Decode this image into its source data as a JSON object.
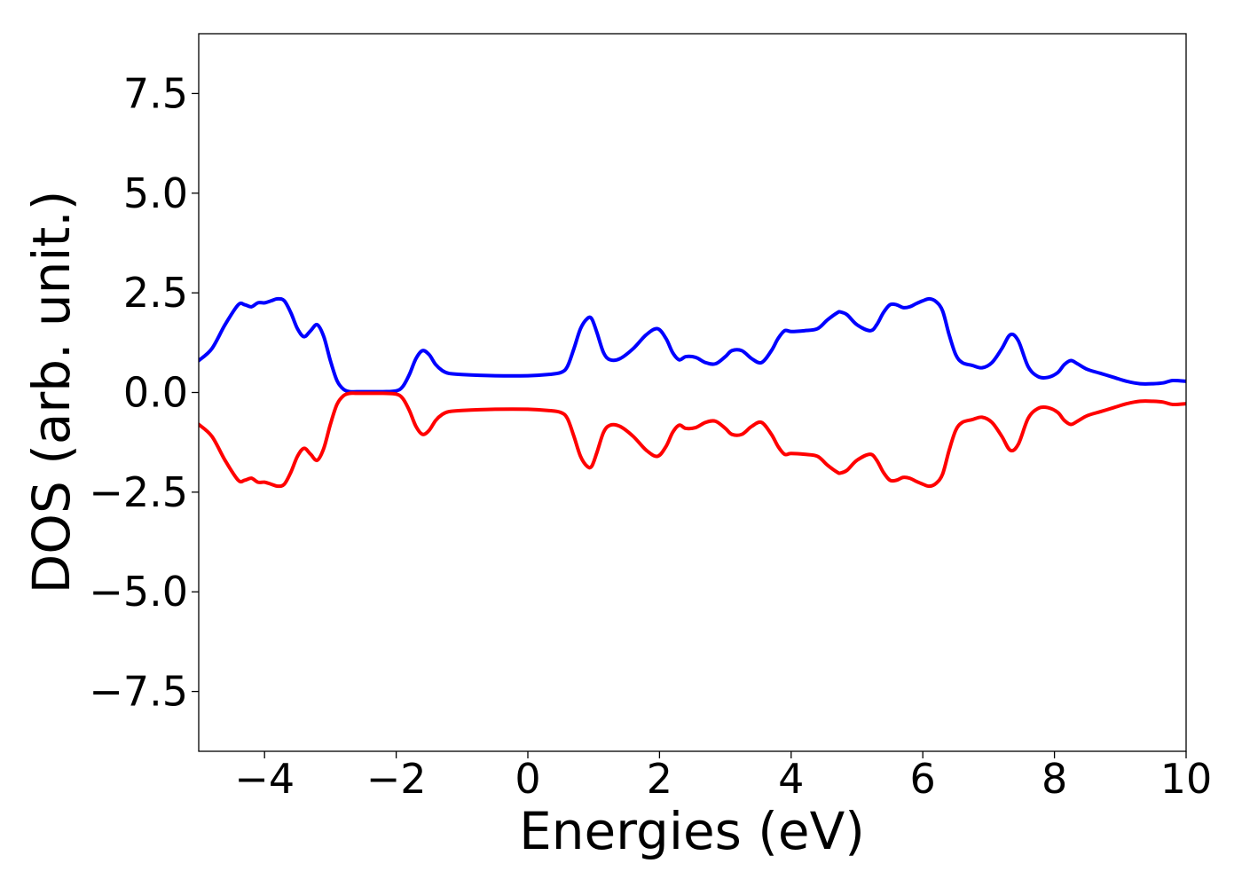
{
  "chart_data": {
    "type": "line",
    "title": "",
    "xlabel": "Energies (eV)",
    "ylabel": "DOS (arb. unit.)",
    "xlim": [
      -5,
      10
    ],
    "ylim": [
      -9.0,
      9.0
    ],
    "xticks": [
      -4,
      -2,
      0,
      2,
      4,
      6,
      8,
      10
    ],
    "xtick_labels": [
      "−4",
      "−2",
      "0",
      "2",
      "4",
      "6",
      "8",
      "10"
    ],
    "yticks": [
      7.5,
      5.0,
      2.5,
      0.0,
      -2.5,
      -5.0,
      -7.5
    ],
    "ytick_labels": [
      "7.5",
      "5.0",
      "2.5",
      "0.0",
      "−2.5",
      "−5.0",
      "−7.5"
    ],
    "grid": false,
    "legend": "none",
    "series": [
      {
        "color": "#0000ff",
        "x": [
          -5.0,
          -4.8,
          -4.6,
          -4.4,
          -4.3,
          -4.2,
          -4.1,
          -4.0,
          -3.9,
          -3.8,
          -3.7,
          -3.6,
          -3.5,
          -3.4,
          -3.3,
          -3.2,
          -3.1,
          -3.0,
          -2.9,
          -2.8,
          -2.7,
          -2.6,
          -2.4,
          -2.2,
          -2.0,
          -1.9,
          -1.8,
          -1.7,
          -1.6,
          -1.5,
          -1.4,
          -1.3,
          -1.2,
          -1.0,
          -0.5,
          0.0,
          0.3,
          0.5,
          0.6,
          0.7,
          0.8,
          0.9,
          0.97,
          1.05,
          1.15,
          1.25,
          1.4,
          1.6,
          1.8,
          1.97,
          2.1,
          2.2,
          2.3,
          2.4,
          2.55,
          2.7,
          2.85,
          3.0,
          3.1,
          3.25,
          3.4,
          3.55,
          3.7,
          3.8,
          3.9,
          4.0,
          4.2,
          4.4,
          4.55,
          4.7,
          4.75,
          4.85,
          5.0,
          5.2,
          5.3,
          5.4,
          5.5,
          5.6,
          5.7,
          5.8,
          5.9,
          6.0,
          6.1,
          6.2,
          6.3,
          6.4,
          6.5,
          6.6,
          6.75,
          6.9,
          7.05,
          7.2,
          7.33,
          7.45,
          7.6,
          7.75,
          7.9,
          8.05,
          8.15,
          8.25,
          8.35,
          8.5,
          8.7,
          8.9,
          9.1,
          9.3,
          9.5,
          9.65,
          9.8,
          10.0
        ],
        "y": [
          0.8,
          1.1,
          1.7,
          2.2,
          2.2,
          2.15,
          2.25,
          2.25,
          2.3,
          2.35,
          2.3,
          2.0,
          1.6,
          1.4,
          1.55,
          1.7,
          1.4,
          0.8,
          0.3,
          0.08,
          0.02,
          0.02,
          0.02,
          0.02,
          0.04,
          0.15,
          0.45,
          0.85,
          1.05,
          0.95,
          0.7,
          0.55,
          0.48,
          0.45,
          0.42,
          0.42,
          0.45,
          0.5,
          0.65,
          1.1,
          1.6,
          1.85,
          1.85,
          1.5,
          1.0,
          0.82,
          0.85,
          1.1,
          1.45,
          1.6,
          1.35,
          1.0,
          0.82,
          0.9,
          0.88,
          0.75,
          0.72,
          0.9,
          1.05,
          1.05,
          0.85,
          0.75,
          1.05,
          1.35,
          1.55,
          1.53,
          1.55,
          1.6,
          1.82,
          2.0,
          2.02,
          1.95,
          1.7,
          1.55,
          1.7,
          2.0,
          2.2,
          2.2,
          2.13,
          2.15,
          2.23,
          2.3,
          2.35,
          2.28,
          2.05,
          1.45,
          0.95,
          0.75,
          0.68,
          0.62,
          0.75,
          1.1,
          1.45,
          1.3,
          0.65,
          0.4,
          0.38,
          0.5,
          0.7,
          0.8,
          0.72,
          0.58,
          0.48,
          0.38,
          0.28,
          0.22,
          0.22,
          0.24,
          0.3,
          0.28
        ]
      },
      {
        "color": "#ff0000",
        "x": [
          -5.0,
          -4.8,
          -4.6,
          -4.4,
          -4.3,
          -4.2,
          -4.1,
          -4.0,
          -3.9,
          -3.8,
          -3.7,
          -3.6,
          -3.5,
          -3.4,
          -3.3,
          -3.2,
          -3.1,
          -3.0,
          -2.9,
          -2.8,
          -2.7,
          -2.6,
          -2.4,
          -2.2,
          -2.0,
          -1.9,
          -1.8,
          -1.7,
          -1.6,
          -1.5,
          -1.4,
          -1.3,
          -1.2,
          -1.0,
          -0.5,
          0.0,
          0.3,
          0.5,
          0.6,
          0.7,
          0.8,
          0.9,
          0.97,
          1.05,
          1.15,
          1.25,
          1.4,
          1.6,
          1.8,
          1.97,
          2.1,
          2.2,
          2.3,
          2.4,
          2.55,
          2.7,
          2.85,
          3.0,
          3.1,
          3.25,
          3.4,
          3.55,
          3.7,
          3.8,
          3.9,
          4.0,
          4.2,
          4.4,
          4.55,
          4.7,
          4.75,
          4.85,
          5.0,
          5.2,
          5.3,
          5.4,
          5.5,
          5.6,
          5.7,
          5.8,
          5.9,
          6.0,
          6.1,
          6.2,
          6.3,
          6.4,
          6.5,
          6.6,
          6.75,
          6.9,
          7.05,
          7.2,
          7.33,
          7.45,
          7.6,
          7.75,
          7.9,
          8.05,
          8.15,
          8.25,
          8.35,
          8.5,
          8.7,
          8.9,
          9.1,
          9.3,
          9.5,
          9.65,
          9.8,
          10.0
        ],
        "y": [
          -0.8,
          -1.1,
          -1.7,
          -2.2,
          -2.2,
          -2.15,
          -2.25,
          -2.25,
          -2.3,
          -2.35,
          -2.3,
          -2.0,
          -1.6,
          -1.4,
          -1.55,
          -1.7,
          -1.4,
          -0.8,
          -0.3,
          -0.08,
          -0.02,
          -0.02,
          -0.02,
          -0.02,
          -0.04,
          -0.15,
          -0.45,
          -0.85,
          -1.05,
          -0.95,
          -0.7,
          -0.55,
          -0.48,
          -0.45,
          -0.42,
          -0.42,
          -0.45,
          -0.5,
          -0.65,
          -1.1,
          -1.6,
          -1.85,
          -1.85,
          -1.5,
          -1.0,
          -0.82,
          -0.85,
          -1.1,
          -1.45,
          -1.6,
          -1.35,
          -1.0,
          -0.82,
          -0.9,
          -0.88,
          -0.75,
          -0.72,
          -0.9,
          -1.05,
          -1.05,
          -0.85,
          -0.75,
          -1.05,
          -1.35,
          -1.55,
          -1.53,
          -1.55,
          -1.6,
          -1.82,
          -2.0,
          -2.02,
          -1.95,
          -1.7,
          -1.55,
          -1.7,
          -2.0,
          -2.2,
          -2.2,
          -2.13,
          -2.15,
          -2.23,
          -2.3,
          -2.35,
          -2.28,
          -2.05,
          -1.45,
          -0.95,
          -0.75,
          -0.68,
          -0.62,
          -0.75,
          -1.1,
          -1.45,
          -1.3,
          -0.65,
          -0.4,
          -0.38,
          -0.5,
          -0.7,
          -0.8,
          -0.72,
          -0.58,
          -0.48,
          -0.38,
          -0.28,
          -0.22,
          -0.22,
          -0.24,
          -0.3,
          -0.28
        ]
      }
    ]
  }
}
